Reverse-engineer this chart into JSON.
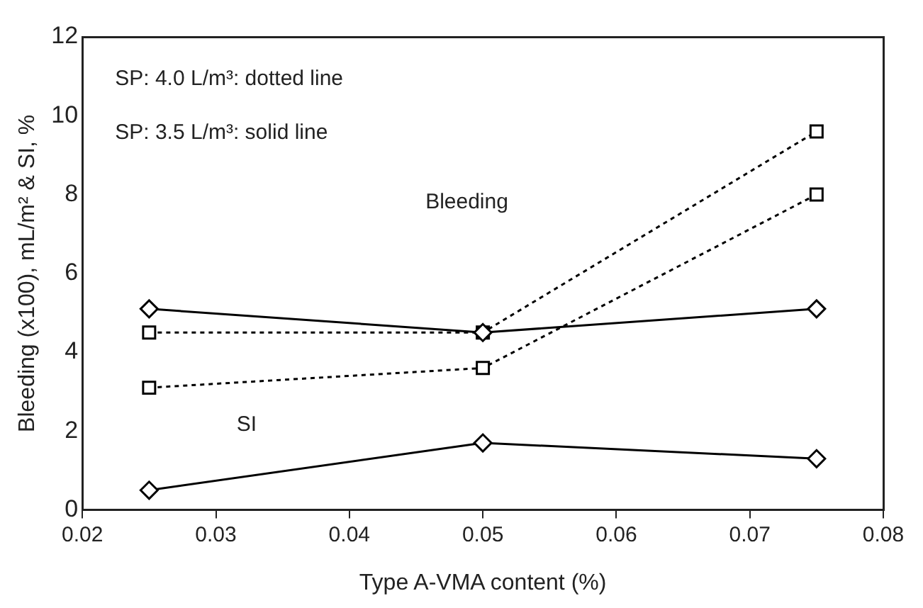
{
  "chart_data": {
    "type": "line",
    "xlabel": "Type A-VMA content (%)",
    "ylabel": "Bleeding (x100), mL/m² & SI, %",
    "x": [
      0.025,
      0.05,
      0.075
    ],
    "series": [
      {
        "color": "#000000",
        "values": [
          5.1,
          4.5,
          5.1
        ],
        "marker": "diamond",
        "line_style": "solid"
      },
      {
        "color": "#000000",
        "values": [
          0.5,
          1.7,
          1.3
        ],
        "marker": "diamond",
        "line_style": "solid"
      },
      {
        "color": "#000000",
        "values": [
          4.5,
          4.5,
          9.6
        ],
        "marker": "square",
        "line_style": "dotted"
      },
      {
        "color": "#000000",
        "values": [
          3.1,
          3.6,
          8.0
        ],
        "marker": "square",
        "line_style": "dotted"
      }
    ],
    "xlim": [
      0.02,
      0.08
    ],
    "xticks": [
      0.02,
      0.03,
      0.04,
      0.05,
      0.06,
      0.07,
      0.08
    ],
    "ylim": [
      0,
      12
    ],
    "yticks": [
      0,
      2,
      4,
      6,
      8,
      10,
      12
    ],
    "grid": false,
    "legend": false,
    "annotations": [
      "SP: 4.0 L/m³: dotted line",
      "SP: 3.5 L/m³: solid line",
      "Bleeding",
      "SI"
    ]
  }
}
